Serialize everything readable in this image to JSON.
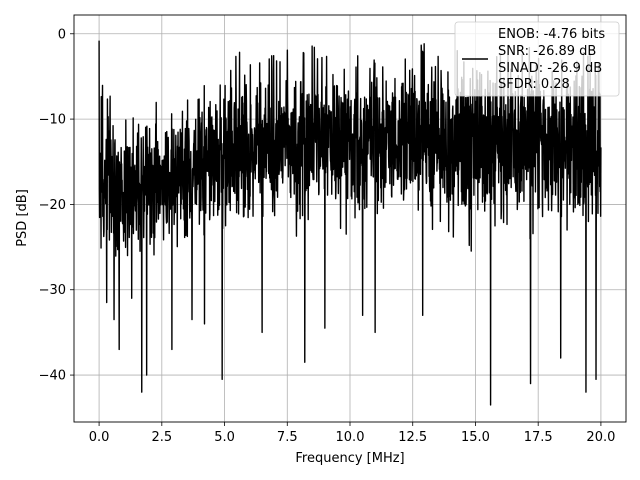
{
  "chart_data": {
    "type": "line",
    "xlabel": "Frequency [MHz]",
    "ylabel": "PSD [dB]",
    "xlim": [
      -1.0,
      21.0
    ],
    "ylim": [
      -45.5,
      2.2
    ],
    "xticks": [
      0.0,
      2.5,
      5.0,
      7.5,
      10.0,
      12.5,
      15.0,
      17.5,
      20.0
    ],
    "xtick_labels": [
      "0.0",
      "2.5",
      "5.0",
      "7.5",
      "10.0",
      "12.5",
      "15.0",
      "17.5",
      "20.0"
    ],
    "yticks": [
      0,
      -10,
      -20,
      -30,
      -40
    ],
    "ytick_labels": [
      "0",
      "−10",
      "−20",
      "−30",
      "−40"
    ],
    "grid": true,
    "legend_position": "top-right",
    "legend_entries": [
      "ENOB: -4.76 bits",
      "SNR: -26.89 dB",
      "SINAD: -26.9 dB",
      "SFDR: 0.28"
    ],
    "series_color": "#000000",
    "series": [
      {
        "x_range": [
          0.0,
          20.0
        ],
        "points": 2048,
        "start_value": -0.8,
        "seed": 20240611,
        "envelope": {
          "x": [
            0.0,
            0.5,
            1.0,
            2.0,
            3.0,
            4.0,
            5.0,
            7.5,
            10.0,
            12.5,
            15.0,
            17.5,
            20.0
          ],
          "top": [
            -6.0,
            -9.0,
            -10.0,
            -10.0,
            -9.0,
            -7.0,
            -4.5,
            -3.0,
            -3.0,
            -3.0,
            -3.0,
            -3.0,
            -3.0
          ],
          "bottom": [
            -27.0,
            -27.0,
            -26.0,
            -26.0,
            -25.0,
            -24.0,
            -23.0,
            -22.0,
            -22.0,
            -22.0,
            -23.0,
            -23.0,
            -23.0
          ]
        },
        "dips": [
          {
            "x": 0.3,
            "y": -31.5
          },
          {
            "x": 0.6,
            "y": -33.5
          },
          {
            "x": 0.8,
            "y": -37.0
          },
          {
            "x": 1.3,
            "y": -31.0
          },
          {
            "x": 1.7,
            "y": -42.0
          },
          {
            "x": 1.9,
            "y": -40.0
          },
          {
            "x": 2.9,
            "y": -37.0
          },
          {
            "x": 3.7,
            "y": -33.5
          },
          {
            "x": 4.2,
            "y": -34.0
          },
          {
            "x": 4.9,
            "y": -40.5
          },
          {
            "x": 6.5,
            "y": -35.0
          },
          {
            "x": 8.2,
            "y": -38.5
          },
          {
            "x": 9.0,
            "y": -34.5
          },
          {
            "x": 10.5,
            "y": -33.0
          },
          {
            "x": 11.0,
            "y": -35.0
          },
          {
            "x": 12.9,
            "y": -33.0
          },
          {
            "x": 15.6,
            "y": -43.5
          },
          {
            "x": 17.2,
            "y": -41.0
          },
          {
            "x": 18.4,
            "y": -38.0
          },
          {
            "x": 19.4,
            "y": -42.0
          },
          {
            "x": 19.8,
            "y": -40.5
          }
        ]
      }
    ]
  }
}
